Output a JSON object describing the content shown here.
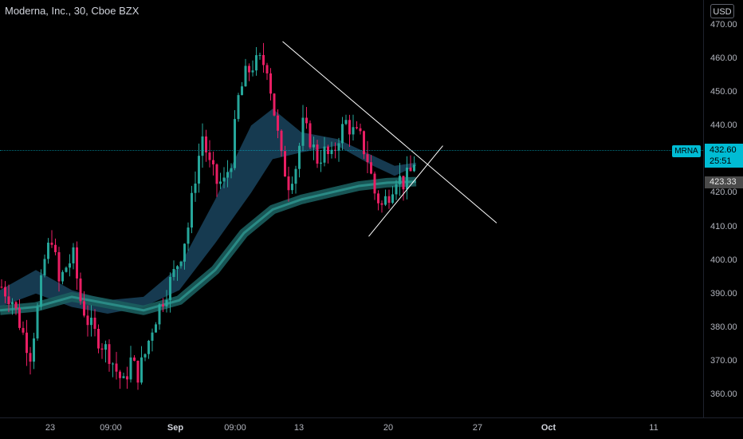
{
  "header": {
    "title": "Moderna, Inc., 30, Cboe BZX",
    "currency": "USD"
  },
  "tags": {
    "symbol": "MRNA",
    "last_price": "432.60",
    "countdown": "25:51",
    "ema_value": "423.33"
  },
  "colors": {
    "background": "#000000",
    "up": "#26a69a",
    "down": "#e91e63",
    "trendline": "#ffffff",
    "price_tag": "#00bcd4"
  },
  "chart_data": {
    "type": "candlestick",
    "title": "Moderna, Inc., 30, Cboe BZX",
    "symbol": "MRNA",
    "ylim": [
      355,
      475
    ],
    "y_ticks": [
      "360.00",
      "370.00",
      "380.00",
      "390.00",
      "400.00",
      "410.00",
      "420.00",
      "430.00",
      "440.00",
      "450.00",
      "460.00",
      "470.00"
    ],
    "x_ticks": [
      "23",
      "09:00",
      "Sep",
      "09:00",
      "13",
      "20",
      "27",
      "Oct",
      "11"
    ],
    "last_price": 432.6,
    "grid": false,
    "path_points": [
      [
        0,
        392
      ],
      [
        3,
        388
      ],
      [
        6,
        378
      ],
      [
        8,
        372
      ],
      [
        10,
        385
      ],
      [
        12,
        400
      ],
      [
        14,
        407
      ],
      [
        16,
        393
      ],
      [
        18,
        398
      ],
      [
        20,
        401
      ],
      [
        22,
        388
      ],
      [
        24,
        382
      ],
      [
        26,
        378
      ],
      [
        28,
        375
      ],
      [
        30,
        372
      ],
      [
        32,
        367
      ],
      [
        34,
        363
      ],
      [
        36,
        370
      ],
      [
        38,
        366
      ],
      [
        40,
        372
      ],
      [
        42,
        380
      ],
      [
        44,
        386
      ],
      [
        46,
        391
      ],
      [
        48,
        396
      ],
      [
        50,
        402
      ],
      [
        52,
        410
      ],
      [
        54,
        425
      ],
      [
        56,
        437
      ],
      [
        58,
        428
      ],
      [
        60,
        423
      ],
      [
        62,
        423
      ],
      [
        64,
        430
      ],
      [
        66,
        448
      ],
      [
        68,
        455
      ],
      [
        70,
        458
      ],
      [
        72,
        459
      ],
      [
        74,
        458
      ],
      [
        76,
        444
      ],
      [
        78,
        430
      ],
      [
        80,
        423
      ],
      [
        82,
        428
      ],
      [
        84,
        440
      ],
      [
        86,
        436
      ],
      [
        88,
        430
      ],
      [
        90,
        432
      ],
      [
        92,
        430
      ],
      [
        94,
        437
      ],
      [
        96,
        441
      ],
      [
        98,
        438
      ],
      [
        100,
        436
      ],
      [
        102,
        430
      ],
      [
        104,
        420
      ],
      [
        106,
        416
      ],
      [
        108,
        420
      ],
      [
        110,
        425
      ],
      [
        112,
        423
      ],
      [
        114,
        426
      ],
      [
        116,
        433
      ]
    ],
    "ribbon_points": [
      [
        0,
        386,
        391
      ],
      [
        10,
        390,
        397
      ],
      [
        20,
        386,
        391
      ],
      [
        30,
        384,
        388
      ],
      [
        40,
        386,
        389
      ],
      [
        50,
        391,
        398
      ],
      [
        60,
        405,
        418
      ],
      [
        70,
        420,
        440
      ],
      [
        76,
        430,
        445
      ],
      [
        84,
        432,
        438
      ],
      [
        94,
        434,
        436
      ],
      [
        104,
        428,
        431
      ],
      [
        110,
        425,
        428
      ],
      [
        116,
        428,
        429
      ]
    ],
    "ema_points": [
      [
        0,
        385
      ],
      [
        10,
        386
      ],
      [
        20,
        389
      ],
      [
        30,
        387
      ],
      [
        40,
        385
      ],
      [
        50,
        388
      ],
      [
        60,
        397
      ],
      [
        68,
        408
      ],
      [
        76,
        415
      ],
      [
        84,
        418
      ],
      [
        92,
        420
      ],
      [
        100,
        422
      ],
      [
        108,
        423
      ],
      [
        116,
        423.3
      ]
    ],
    "trendlines": [
      {
        "from": [
          75,
          465
        ],
        "to": [
          130,
          411
        ]
      },
      {
        "from": [
          99,
          407
        ],
        "to": [
          115,
          434
        ]
      }
    ]
  }
}
